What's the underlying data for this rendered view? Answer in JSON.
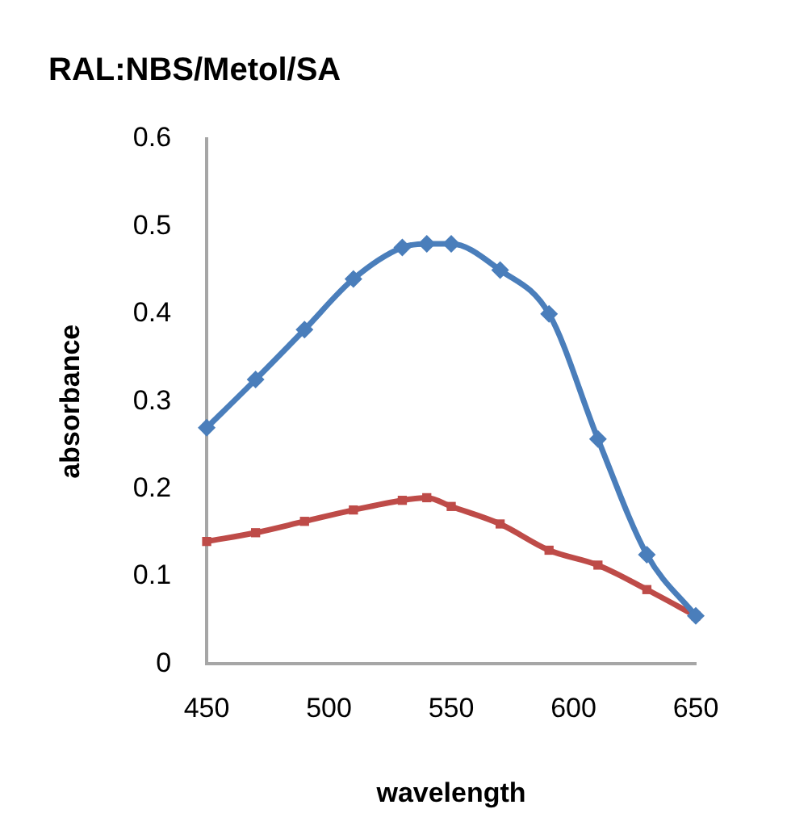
{
  "chart_data": {
    "type": "line",
    "title": "RAL:NBS/Metol/SA",
    "xlabel": "wavelength",
    "ylabel": "absorbance",
    "x": [
      450,
      470,
      490,
      510,
      530,
      540,
      550,
      570,
      590,
      610,
      630,
      650
    ],
    "series": [
      {
        "color": "#4a7ebb",
        "marker": "diamond",
        "values": [
          0.27,
          0.325,
          0.382,
          0.44,
          0.476,
          0.48,
          0.48,
          0.45,
          0.4,
          0.257,
          0.125,
          0.055
        ]
      },
      {
        "color": "#be4b48",
        "marker": "square",
        "values": [
          0.14,
          0.15,
          0.163,
          0.176,
          0.187,
          0.19,
          0.18,
          0.16,
          0.13,
          0.113,
          0.085,
          0.055
        ]
      }
    ],
    "xlim": [
      450,
      650
    ],
    "xticks": [
      450,
      500,
      550,
      600,
      650
    ],
    "ylim": [
      0,
      0.6
    ],
    "yticks": [
      0,
      0.1,
      0.2,
      0.3,
      0.4,
      0.5,
      0.6
    ],
    "grid": false,
    "legend": false
  }
}
